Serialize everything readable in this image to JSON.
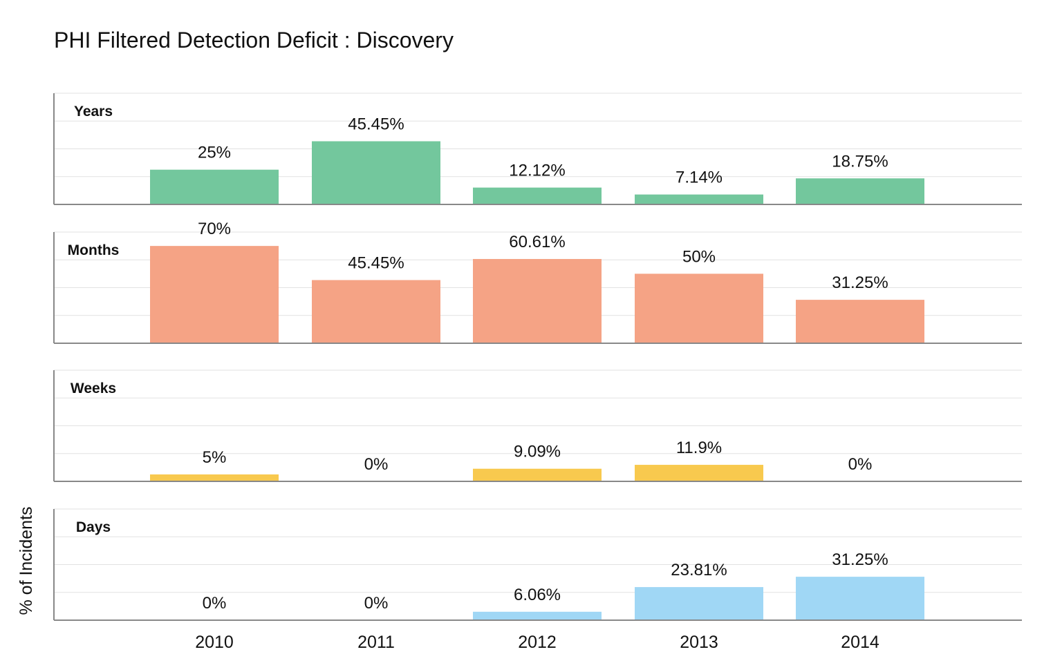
{
  "chart_data": {
    "type": "bar",
    "title": "PHI Filtered Detection Deficit : Discovery",
    "ylabel": "% of Incidents",
    "xlabel": "",
    "categories": [
      "2010",
      "2011",
      "2012",
      "2013",
      "2014"
    ],
    "ylim": [
      0,
      80
    ],
    "grid": true,
    "panels": [
      {
        "name": "Years",
        "color": "#73c79d",
        "values": [
          25,
          45.45,
          12.12,
          7.14,
          18.75
        ],
        "labels": [
          "25%",
          "45.45%",
          "12.12%",
          "7.14%",
          "18.75%"
        ]
      },
      {
        "name": "Months",
        "color": "#f5a385",
        "values": [
          70,
          45.45,
          60.61,
          50,
          31.25
        ],
        "labels": [
          "70%",
          "45.45%",
          "60.61%",
          "50%",
          "31.25%"
        ]
      },
      {
        "name": "Weeks",
        "color": "#f8c94e",
        "values": [
          5,
          0,
          9.09,
          11.9,
          0
        ],
        "labels": [
          "5%",
          "0%",
          "9.09%",
          "11.9%",
          "0%"
        ]
      },
      {
        "name": "Days",
        "color": "#a0d7f5",
        "values": [
          0,
          0,
          6.06,
          23.81,
          31.25
        ],
        "labels": [
          "0%",
          "0%",
          "6.06%",
          "23.81%",
          "31.25%"
        ]
      }
    ]
  }
}
